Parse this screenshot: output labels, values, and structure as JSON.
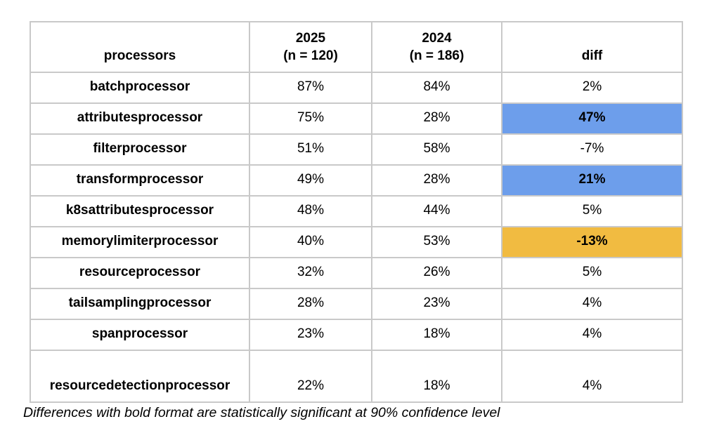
{
  "chart_data": {
    "type": "table",
    "title": "",
    "header": {
      "processors": "processors",
      "col2025": {
        "line1": "2025",
        "line2": "(n = 120)"
      },
      "col2024": {
        "line1": "2024",
        "line2": "(n = 186)"
      },
      "diff": "diff"
    },
    "columns": [
      "processors",
      "2025 (n = 120)",
      "2024 (n = 186)",
      "diff"
    ],
    "rows": [
      {
        "processor": "batchprocessor",
        "y2025": "87%",
        "y2024": "84%",
        "diff": "2%",
        "significant": false
      },
      {
        "processor": "attributesprocessor",
        "y2025": "75%",
        "y2024": "28%",
        "diff": "47%",
        "significant": true,
        "direction": "increase"
      },
      {
        "processor": "filterprocessor",
        "y2025": "51%",
        "y2024": "58%",
        "diff": "-7%",
        "significant": false
      },
      {
        "processor": "transformprocessor",
        "y2025": "49%",
        "y2024": "28%",
        "diff": "21%",
        "significant": true,
        "direction": "increase"
      },
      {
        "processor": "k8sattributesprocessor",
        "y2025": "48%",
        "y2024": "44%",
        "diff": "5%",
        "significant": false
      },
      {
        "processor": "memorylimiterprocessor",
        "y2025": "40%",
        "y2024": "53%",
        "diff": "-13%",
        "significant": true,
        "direction": "decrease"
      },
      {
        "processor": "resourceprocessor",
        "y2025": "32%",
        "y2024": "26%",
        "diff": "5%",
        "significant": false
      },
      {
        "processor": "tailsamplingprocessor",
        "y2025": "28%",
        "y2024": "23%",
        "diff": "4%",
        "significant": false
      },
      {
        "processor": "spanprocessor",
        "y2025": "23%",
        "y2024": "18%",
        "diff": "4%",
        "significant": false
      },
      {
        "processor": "resourcedetectionprocessor",
        "y2025": "22%",
        "y2024": "18%",
        "diff": "4%",
        "significant": false
      }
    ],
    "sample_sizes": {
      "2025": 120,
      "2024": 186
    },
    "colors": {
      "significant_increase_bg": "#6d9eeb",
      "significant_decrease_bg": "#f1bb41",
      "border": "#c9c9c9",
      "text": "#000000"
    },
    "footnote": "Differences with bold format are statistically significant at 90% confidence level"
  }
}
